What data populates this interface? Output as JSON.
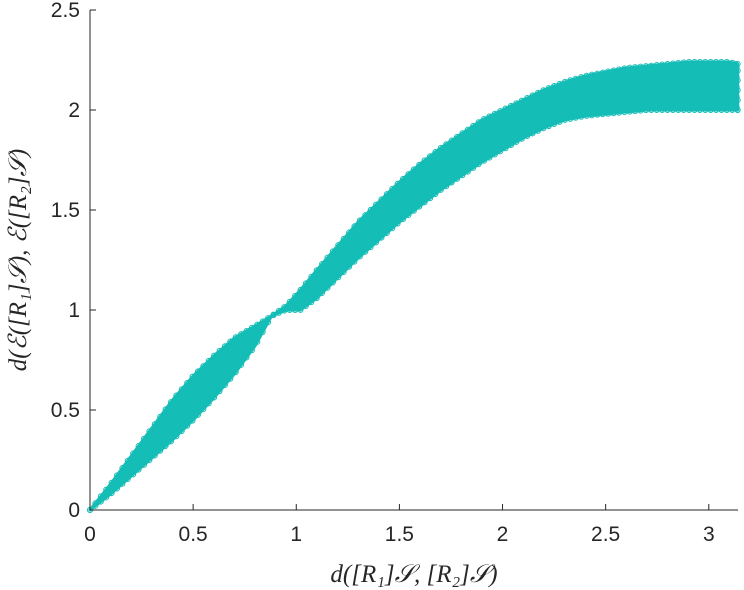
{
  "chart_data": {
    "type": "scatter",
    "title": "",
    "xlabel": "d([R₁]𝒮, [R₂]𝒮)",
    "ylabel": "d(ℰ([R₁]𝒮), ℰ([R₂]𝒮)",
    "xlim": [
      0,
      3.14159
    ],
    "ylim": [
      0,
      2.5
    ],
    "x_ticks": [
      "0",
      "0.5",
      "1",
      "1.5",
      "2",
      "2.5",
      "3"
    ],
    "y_ticks": [
      "0",
      "0.5",
      "1",
      "1.5",
      "2",
      "2.5"
    ],
    "grid": false,
    "legend": "none",
    "color": "#14bdb6",
    "series": [
      {
        "x": [
          0.0,
          0.1,
          0.2,
          0.3,
          0.4,
          0.5,
          0.6,
          0.7,
          0.8,
          0.88,
          0.95,
          1.02,
          1.1,
          1.2,
          1.3,
          1.4,
          1.5,
          1.6,
          1.7,
          1.8,
          1.9,
          2.0,
          2.1,
          2.2,
          2.3,
          2.4,
          2.5,
          2.6,
          2.7,
          2.8,
          2.9,
          3.0,
          3.1,
          3.14
        ],
        "y_min": [
          0.0,
          0.08,
          0.17,
          0.26,
          0.35,
          0.45,
          0.56,
          0.68,
          0.82,
          0.97,
          1.0,
          1.0,
          1.06,
          1.16,
          1.26,
          1.35,
          1.44,
          1.52,
          1.6,
          1.67,
          1.74,
          1.8,
          1.86,
          1.91,
          1.95,
          1.97,
          1.98,
          1.99,
          2.0,
          2.0,
          2.0,
          2.0,
          2.0,
          2.0
        ],
        "y_max": [
          0.0,
          0.13,
          0.27,
          0.41,
          0.55,
          0.67,
          0.77,
          0.86,
          0.92,
          0.97,
          1.02,
          1.1,
          1.2,
          1.32,
          1.44,
          1.54,
          1.64,
          1.73,
          1.81,
          1.88,
          1.95,
          2.0,
          2.05,
          2.1,
          2.14,
          2.17,
          2.19,
          2.21,
          2.22,
          2.23,
          2.24,
          2.24,
          2.24,
          2.23
        ]
      }
    ]
  }
}
